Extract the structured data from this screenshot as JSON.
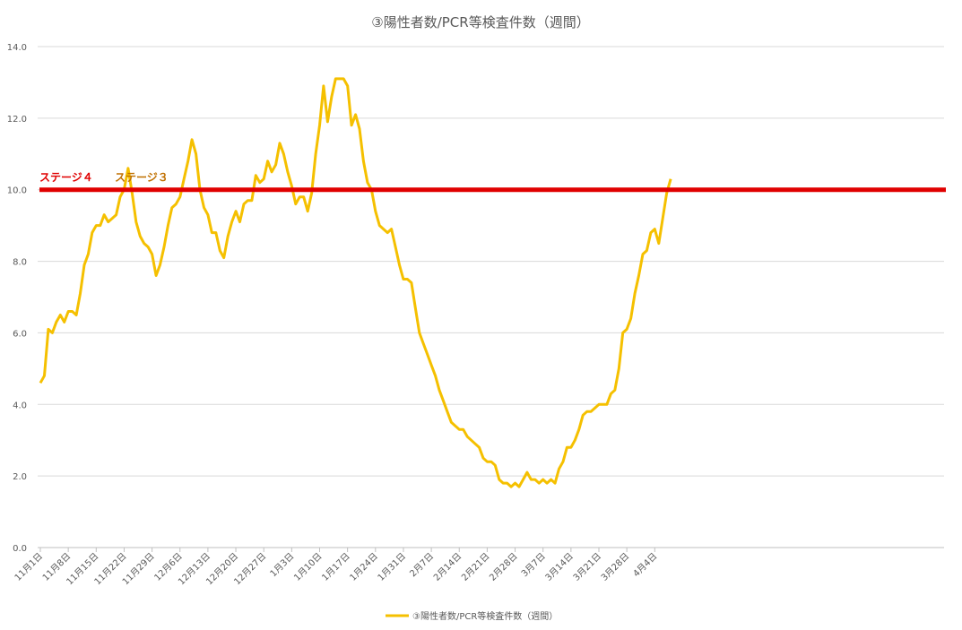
{
  "chart_data": {
    "type": "line",
    "title": "③陽性者数/PCR等検査件数（週間）",
    "ylim": [
      0,
      14
    ],
    "y_ticks": [
      "0.0",
      "2.0",
      "4.0",
      "6.0",
      "8.0",
      "10.0",
      "12.0",
      "14.0"
    ],
    "x_tick_labels": [
      "11月1日",
      "11月8日",
      "11月15日",
      "11月22日",
      "11月29日",
      "12月6日",
      "12月13日",
      "12月20日",
      "12月27日",
      "1月3日",
      "1月10日",
      "1月17日",
      "1月24日",
      "1月31日",
      "2月7日",
      "2月14日",
      "2月21日",
      "2月28日",
      "3月7日",
      "3月14日",
      "3月21日",
      "3月28日",
      "4月4日"
    ],
    "grid": true,
    "legend": "bottom",
    "series": [
      {
        "name": "③陽性者数/PCR等検査件数（週間）",
        "color": "#F5C000",
        "values": [
          4.6,
          4.8,
          6.1,
          6.0,
          6.3,
          6.5,
          6.3,
          6.6,
          6.6,
          6.5,
          7.1,
          7.9,
          8.2,
          8.8,
          9.0,
          9.0,
          9.3,
          9.1,
          9.2,
          9.3,
          9.8,
          10.0,
          10.6,
          9.9,
          9.1,
          8.7,
          8.5,
          8.4,
          8.2,
          7.6,
          7.9,
          8.4,
          9.0,
          9.5,
          9.6,
          9.8,
          10.3,
          10.8,
          11.4,
          11.0,
          10.0,
          9.5,
          9.3,
          8.8,
          8.8,
          8.3,
          8.1,
          8.7,
          9.1,
          9.4,
          9.1,
          9.6,
          9.7,
          9.7,
          10.4,
          10.2,
          10.3,
          10.8,
          10.5,
          10.7,
          11.3,
          11.0,
          10.5,
          10.1,
          9.6,
          9.8,
          9.8,
          9.4,
          9.9,
          11.0,
          11.8,
          12.9,
          11.9,
          12.6,
          13.1,
          13.1,
          13.1,
          12.9,
          11.8,
          12.1,
          11.7,
          10.8,
          10.2,
          10.0,
          9.4,
          9.0,
          8.9,
          8.8,
          8.9,
          8.4,
          7.9,
          7.5,
          7.5,
          7.4,
          6.7,
          6.0,
          5.7,
          5.4,
          5.1,
          4.8,
          4.4,
          4.1,
          3.8,
          3.5,
          3.4,
          3.3,
          3.3,
          3.1,
          3.0,
          2.9,
          2.8,
          2.5,
          2.4,
          2.4,
          2.3,
          1.9,
          1.8,
          1.8,
          1.7,
          1.8,
          1.7,
          1.9,
          2.1,
          1.9,
          1.9,
          1.8,
          1.9,
          1.8,
          1.9,
          1.8,
          2.2,
          2.4,
          2.8,
          2.8,
          3.0,
          3.3,
          3.7,
          3.8,
          3.8,
          3.9,
          4.0,
          4.0,
          4.0,
          4.3,
          4.4,
          5.0,
          6.0,
          6.1,
          6.4,
          7.1,
          7.6,
          8.2,
          8.3,
          8.8,
          8.9,
          8.5,
          9.2,
          9.9,
          10.3
        ]
      }
    ],
    "reference_line": {
      "value": 10.0,
      "color": "#E00000"
    },
    "annotations": [
      {
        "text": "ステージ４",
        "color": "#E00000"
      },
      {
        "text": "ステージ３",
        "color": "#C07000"
      }
    ]
  }
}
